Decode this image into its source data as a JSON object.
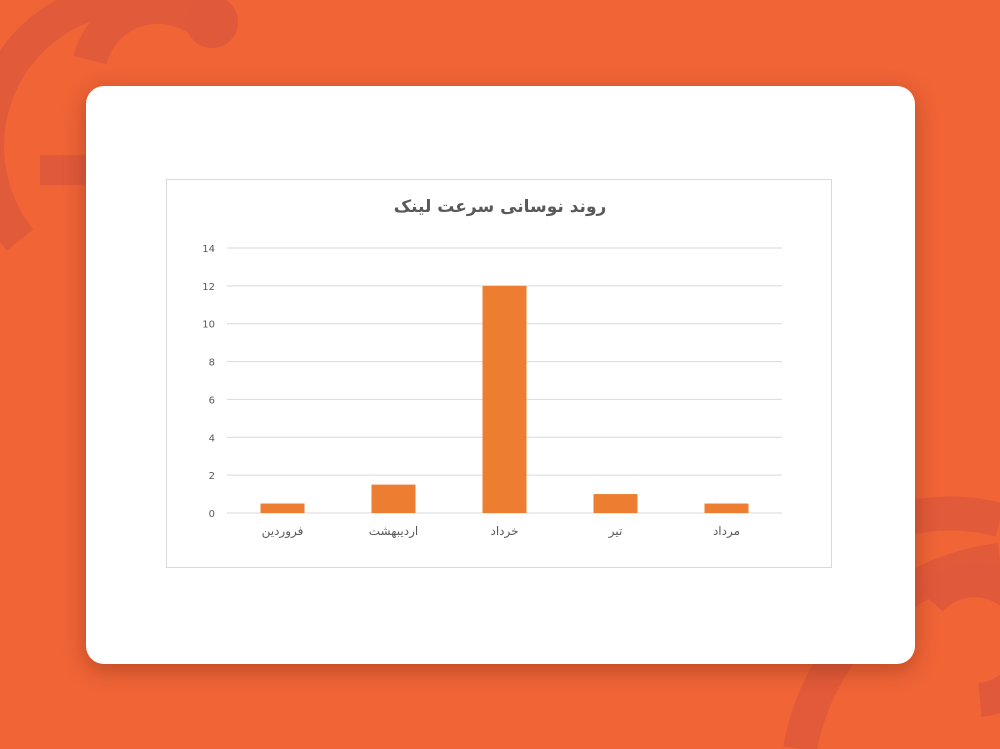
{
  "colors": {
    "background": "#F06436",
    "card": "#FFFFFF",
    "bar": "#ED7D31",
    "grid": "#D9D9D9",
    "text": "#595959"
  },
  "chart_data": {
    "type": "bar",
    "title": "روند نوسانی سرعت لینک",
    "categories": [
      "مرداد",
      "تیر",
      "خرداد",
      "اردیبهشت",
      "فروردین"
    ],
    "values": [
      0.5,
      1,
      12,
      1.5,
      0.5
    ],
    "category_order": "right-to-left",
    "ylim": [
      0,
      14
    ],
    "yticks": [
      0,
      2,
      4,
      6,
      8,
      10,
      12,
      14
    ],
    "grid": true,
    "legend": "none",
    "xlabel": "",
    "ylabel": ""
  }
}
